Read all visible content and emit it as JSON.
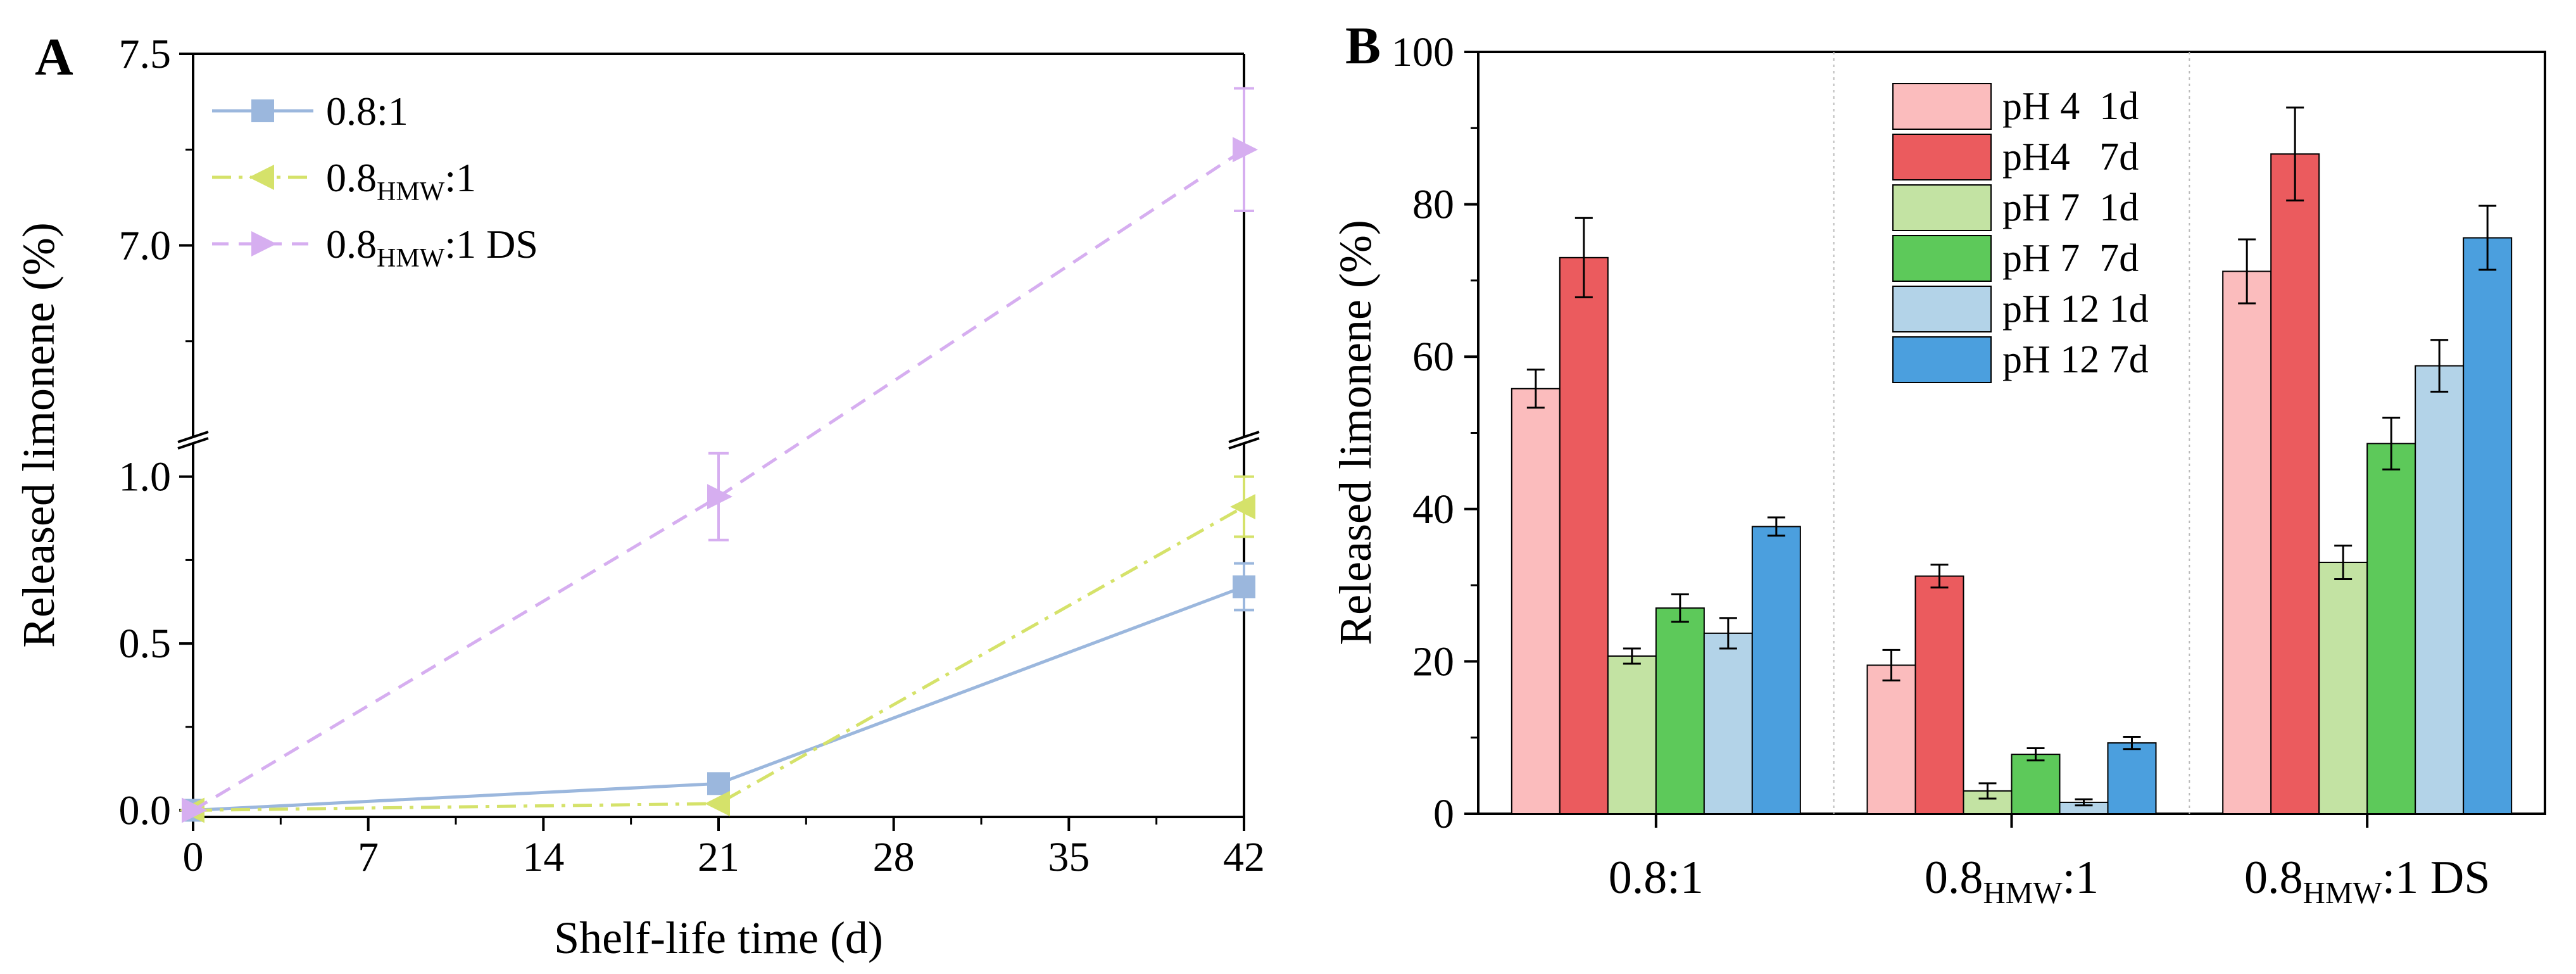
{
  "chart_data": [
    {
      "panel_label": "A",
      "type": "line",
      "xlabel": "Shelf-life time (d)",
      "ylabel": "Released limonene (%)",
      "x_ticks": [
        "0",
        "7",
        "14",
        "21",
        "28",
        "35",
        "42"
      ],
      "y_ticks_lower": [
        "0.0",
        "0.5",
        "1.0"
      ],
      "y_ticks_upper": [
        "7.0",
        "7.5"
      ],
      "xlim": [
        0,
        42
      ],
      "ylim_lower": [
        -0.02,
        1.1
      ],
      "ylim_upper": [
        6.5,
        7.5
      ],
      "broken_y_axis": true,
      "grid": false,
      "legend_position": "top-left",
      "series": [
        {
          "name_main": "0.8:1",
          "name_sub": "",
          "name_tail": "",
          "color": "#9bb7dd",
          "marker": "square",
          "linestyle": "solid",
          "x": [
            0,
            21,
            42
          ],
          "y": [
            0.0,
            0.08,
            0.67
          ],
          "err": [
            0.0,
            0.02,
            0.07
          ]
        },
        {
          "name_main": "0.8",
          "name_sub": "HMW",
          "name_tail": ":1",
          "color": "#d5e26a",
          "marker": "triangle-left",
          "linestyle": "dashdot",
          "x": [
            0,
            21,
            42
          ],
          "y": [
            0.0,
            0.02,
            0.91
          ],
          "err": [
            0.0,
            0.0,
            0.09
          ]
        },
        {
          "name_main": "0.8",
          "name_sub": "HMW",
          "name_tail": ":1 DS",
          "color": "#d6aef0",
          "marker": "triangle-right",
          "linestyle": "dashed",
          "x": [
            0,
            21,
            42
          ],
          "y": [
            0.0,
            0.94,
            7.25
          ],
          "err": [
            0.0,
            0.13,
            0.16
          ]
        }
      ]
    },
    {
      "panel_label": "B",
      "type": "bar",
      "ylabel": "Released limonene (%)",
      "ylim": [
        0,
        100
      ],
      "y_ticks": [
        "0",
        "20",
        "40",
        "60",
        "80",
        "100"
      ],
      "grid": false,
      "legend_position": "top-center",
      "categories": [
        {
          "main": "0.8:1",
          "sub": "",
          "tail": ""
        },
        {
          "main": "0.8",
          "sub": "HMW",
          "tail": ":1"
        },
        {
          "main": "0.8",
          "sub": "HMW",
          "tail": ":1 DS"
        }
      ],
      "series": [
        {
          "name": "pH 4  1d",
          "color": "#fbbcbd",
          "values": [
            55.8,
            19.5,
            71.2
          ],
          "err": [
            2.5,
            2.0,
            4.2
          ]
        },
        {
          "name": "pH4   7d",
          "color": "#eb5b5e",
          "values": [
            73.0,
            31.2,
            86.6
          ],
          "err": [
            5.2,
            1.5,
            6.1
          ]
        },
        {
          "name": "pH 7  1d",
          "color": "#c3e3a3",
          "values": [
            20.7,
            3.0,
            33.0
          ],
          "err": [
            1.0,
            1.0,
            2.2
          ]
        },
        {
          "name": "pH 7  7d",
          "color": "#5dc95a",
          "values": [
            27.0,
            7.8,
            48.6
          ],
          "err": [
            1.8,
            0.8,
            3.4
          ]
        },
        {
          "name": "pH 12 1d",
          "color": "#b3d3e8",
          "values": [
            23.7,
            1.5,
            58.8
          ],
          "err": [
            2.0,
            0.4,
            3.4
          ]
        },
        {
          "name": "pH 12 7d",
          "color": "#4b9fde",
          "values": [
            37.7,
            9.3,
            75.6
          ],
          "err": [
            1.2,
            0.8,
            4.2
          ]
        }
      ]
    }
  ]
}
